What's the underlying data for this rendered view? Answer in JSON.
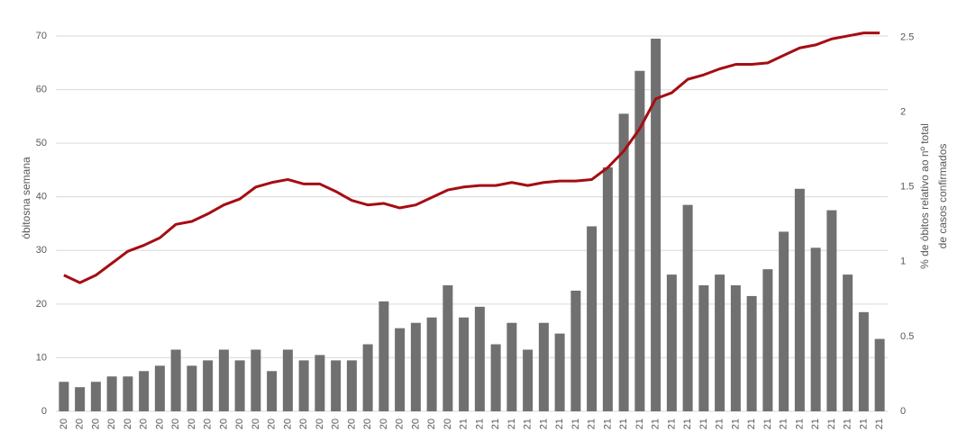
{
  "chart_data": {
    "type": "bar_line",
    "y_label": "óbitosna semana",
    "y2_label": [
      "% de óbitos relativo ao nº total",
      "de casos confirmados"
    ],
    "categories": [
      "20",
      "20",
      "20",
      "20",
      "20",
      "20",
      "20",
      "20",
      "20",
      "20",
      "20",
      "20",
      "20",
      "20",
      "20",
      "20",
      "20",
      "20",
      "20",
      "20",
      "20",
      "20",
      "20",
      "20",
      "20",
      "21",
      "21",
      "21",
      "21",
      "21",
      "21",
      "21",
      "21",
      "21",
      "21",
      "21",
      "21",
      "21",
      "21",
      "21",
      "21",
      "21",
      "21",
      "21",
      "21",
      "21",
      "21",
      "21",
      "21",
      "21",
      "21",
      "21"
    ],
    "series": [
      {
        "type": "bar",
        "color": "#707070",
        "values": [
          5.5,
          4.5,
          5.5,
          6.5,
          6.5,
          7.5,
          8.5,
          11.5,
          8.5,
          9.5,
          11.5,
          9.5,
          11.5,
          7.5,
          11.5,
          9.5,
          10.5,
          9.5,
          9.5,
          12.5,
          20.5,
          15.5,
          16.5,
          17.5,
          23.5,
          17.5,
          19.5,
          12.5,
          16.5,
          11.5,
          16.5,
          14.5,
          22.5,
          34.5,
          45.5,
          55.5,
          63.5,
          69.5,
          25.5,
          38.5,
          23.5,
          25.5,
          23.5,
          21.5,
          26.5,
          33.5,
          41.5,
          30.5,
          37.5,
          25.5,
          18.5,
          13.5
        ]
      },
      {
        "type": "line",
        "axis": "y2",
        "color": "#a50d12",
        "values": [
          0.91,
          0.86,
          0.91,
          0.99,
          1.07,
          1.11,
          1.16,
          1.25,
          1.27,
          1.32,
          1.38,
          1.42,
          1.5,
          1.53,
          1.55,
          1.52,
          1.52,
          1.47,
          1.41,
          1.38,
          1.39,
          1.36,
          1.38,
          1.43,
          1.48,
          1.5,
          1.51,
          1.51,
          1.53,
          1.51,
          1.53,
          1.54,
          1.54,
          1.55,
          1.63,
          1.74,
          1.89,
          2.09,
          2.13,
          2.22,
          2.25,
          2.29,
          2.32,
          2.32,
          2.33,
          2.38,
          2.43,
          2.45,
          2.49,
          2.51,
          2.53,
          2.53
        ]
      }
    ],
    "ylim": [
      0,
      70
    ],
    "yticks": [
      0,
      10,
      20,
      30,
      40,
      50,
      60,
      70
    ],
    "y2lim": [
      0,
      2.63
    ],
    "y2ticks": [
      0,
      0.5,
      1,
      1.5,
      2,
      2.5
    ],
    "grid": true
  }
}
